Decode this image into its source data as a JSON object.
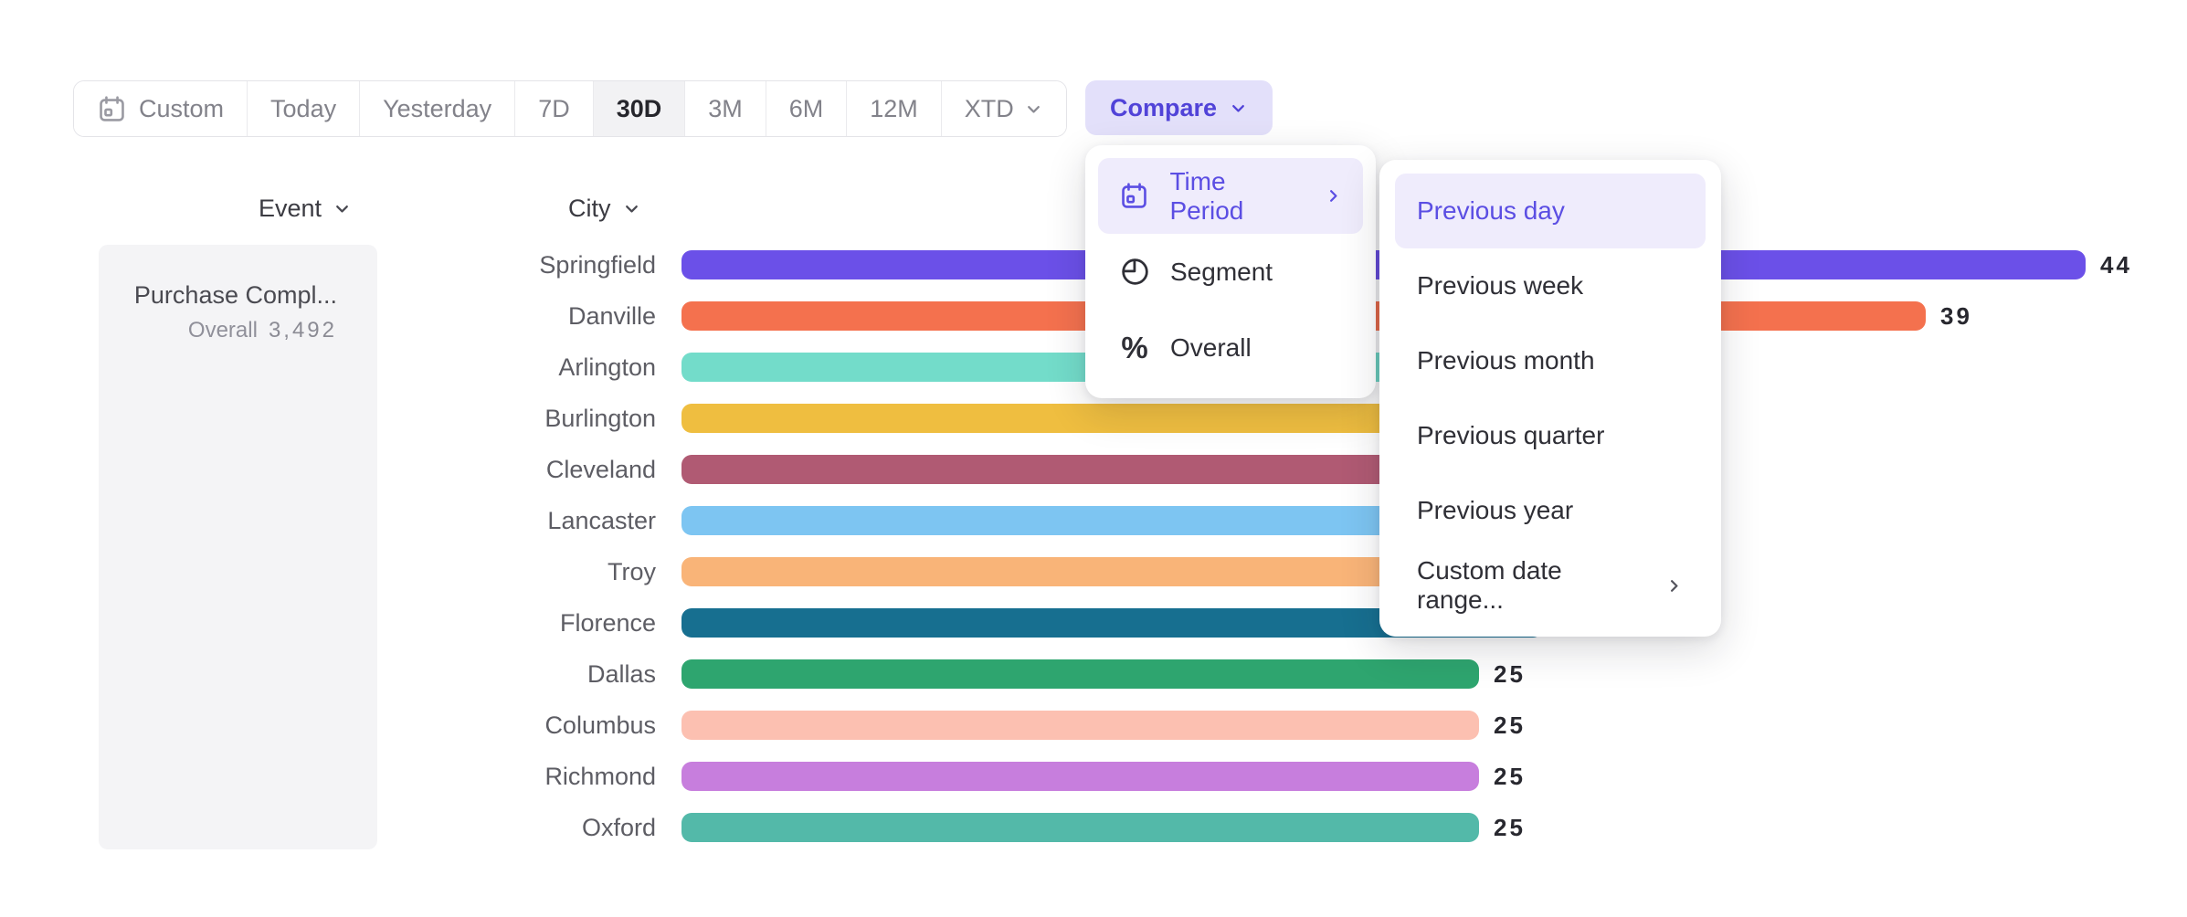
{
  "toolbar": {
    "items": [
      {
        "label": "Custom",
        "icon": "calendar",
        "selected": false
      },
      {
        "label": "Today",
        "selected": false
      },
      {
        "label": "Yesterday",
        "selected": false
      },
      {
        "label": "7D",
        "selected": false
      },
      {
        "label": "30D",
        "selected": true
      },
      {
        "label": "3M",
        "selected": false
      },
      {
        "label": "6M",
        "selected": false
      },
      {
        "label": "12M",
        "selected": false
      },
      {
        "label": "XTD",
        "chevron": true,
        "selected": false
      }
    ],
    "compare_label": "Compare"
  },
  "column_headers": {
    "event": "Event",
    "city": "City"
  },
  "event_panel": {
    "event_name": "Purchase Compl...",
    "overall_label": "Overall",
    "overall_value": "3,492"
  },
  "chart_data": {
    "type": "bar",
    "orientation": "horizontal",
    "group_by": "City",
    "xlim": [
      0,
      44
    ],
    "rows": [
      {
        "city": "Springfield",
        "value": 44,
        "render_units": 44,
        "color": "#6b50e8"
      },
      {
        "city": "Danville",
        "value": 39,
        "render_units": 39,
        "color": "#f4714e"
      },
      {
        "city": "Arlington",
        "value": null,
        "render_units": 32,
        "color": "#73dcca"
      },
      {
        "city": "Burlington",
        "value": null,
        "render_units": 31,
        "color": "#efbe40"
      },
      {
        "city": "Cleveland",
        "value": null,
        "render_units": 30,
        "color": "#b05a73"
      },
      {
        "city": "Lancaster",
        "value": null,
        "render_units": 29,
        "color": "#7dc5f2"
      },
      {
        "city": "Troy",
        "value": null,
        "render_units": 28,
        "color": "#f9b478"
      },
      {
        "city": "Florence",
        "value": null,
        "render_units": 27,
        "color": "#176f90"
      },
      {
        "city": "Dallas",
        "value": 25,
        "render_units": 25,
        "color": "#2ea56f"
      },
      {
        "city": "Columbus",
        "value": 25,
        "render_units": 25,
        "color": "#fcc0b1"
      },
      {
        "city": "Richmond",
        "value": 25,
        "render_units": 25,
        "color": "#c77edd"
      },
      {
        "city": "Oxford",
        "value": 25,
        "render_units": 25,
        "color": "#53b9a9"
      }
    ]
  },
  "compare_menu": {
    "items": [
      {
        "label": "Time Period",
        "icon": "calendar",
        "selected": true,
        "has_submenu": true
      },
      {
        "label": "Segment",
        "icon": "segment",
        "selected": false
      },
      {
        "label": "Overall",
        "icon": "percent",
        "selected": false
      }
    ]
  },
  "time_period_submenu": {
    "items": [
      {
        "label": "Previous day",
        "selected": true
      },
      {
        "label": "Previous week",
        "selected": false
      },
      {
        "label": "Previous month",
        "selected": false
      },
      {
        "label": "Previous quarter",
        "selected": false
      },
      {
        "label": "Previous year",
        "selected": false
      },
      {
        "label": "Custom date range...",
        "selected": false,
        "has_submenu": true
      }
    ]
  },
  "colors": {
    "accent": "#5b4ee3",
    "accent_highlight_bg": "#efecfc",
    "compare_button_bg": "#e3e0fa",
    "toolbar_selected_bg": "#f2f2f4",
    "event_panel_bg": "#f4f4f6",
    "label_gray": "#5d5d64",
    "value_text": "#28282f"
  }
}
